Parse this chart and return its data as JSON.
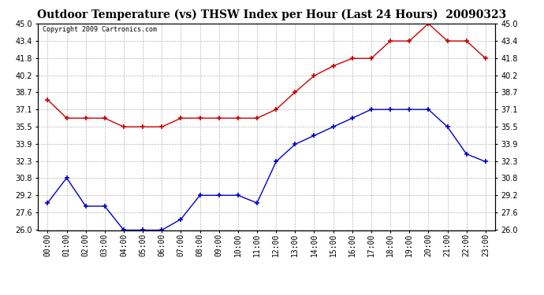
{
  "title": "Outdoor Temperature (vs) THSW Index per Hour (Last 24 Hours)  20090323",
  "copyright": "Copyright 2009 Cartronics.com",
  "hours": [
    "00:00",
    "01:00",
    "02:00",
    "03:00",
    "04:00",
    "05:00",
    "06:00",
    "07:00",
    "08:00",
    "09:00",
    "10:00",
    "11:00",
    "12:00",
    "13:00",
    "14:00",
    "15:00",
    "16:00",
    "17:00",
    "18:00",
    "19:00",
    "20:00",
    "21:00",
    "22:00",
    "23:00"
  ],
  "temp": [
    28.5,
    30.8,
    28.2,
    28.2,
    26.0,
    26.0,
    26.0,
    27.0,
    29.2,
    29.2,
    29.2,
    28.5,
    32.3,
    33.9,
    34.7,
    35.5,
    36.3,
    37.1,
    37.1,
    37.1,
    37.1,
    35.5,
    33.0,
    32.3
  ],
  "thsw": [
    38.0,
    36.3,
    36.3,
    36.3,
    35.5,
    35.5,
    35.5,
    36.3,
    36.3,
    36.3,
    36.3,
    36.3,
    37.1,
    38.7,
    40.2,
    41.1,
    41.8,
    41.8,
    43.4,
    43.4,
    45.0,
    43.4,
    43.4,
    41.8
  ],
  "ylim": [
    26.0,
    45.0
  ],
  "yticks": [
    26.0,
    27.6,
    29.2,
    30.8,
    32.3,
    33.9,
    35.5,
    37.1,
    38.7,
    40.2,
    41.8,
    43.4,
    45.0
  ],
  "temp_color": "#0000cc",
  "thsw_color": "#cc0000",
  "bg_color": "#ffffff",
  "grid_color": "#b0b0b0",
  "title_fontsize": 10,
  "copyright_fontsize": 6,
  "tick_fontsize": 7,
  "fig_width": 6.9,
  "fig_height": 3.75,
  "dpi": 100
}
